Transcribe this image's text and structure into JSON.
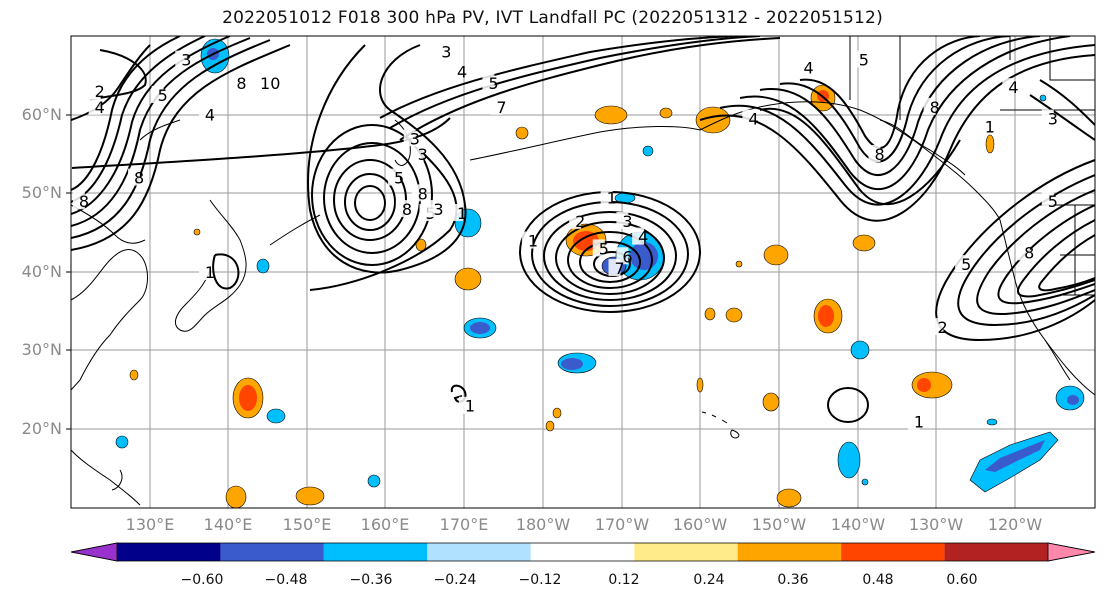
{
  "title": "2022051012 F018 300 hPa PV, IVT Landfall PC (2022051312 - 2022051512)",
  "lat_ticks": [
    "60°N",
    "50°N",
    "40°N",
    "30°N",
    "20°N"
  ],
  "lon_ticks": [
    "130°E",
    "140°E",
    "150°E",
    "160°E",
    "170°E",
    "180°W",
    "170°W",
    "160°W",
    "150°W",
    "140°W",
    "130°W",
    "120°W"
  ],
  "colorbar": {
    "labels": [
      "−0.60",
      "−0.48",
      "−0.36",
      "−0.24",
      "−0.12",
      "0.12",
      "0.24",
      "0.36",
      "0.48",
      "0.60"
    ],
    "colors": [
      "#9932cc",
      "#00008b",
      "#3a5bcc",
      "#00bfff",
      "#b0e2ff",
      "#ffffff",
      "#ffeb8a",
      "#ffa500",
      "#ff4500",
      "#b22222",
      "#ff88aa"
    ]
  },
  "contour_labels": [
    {
      "text": "2",
      "lon": 123,
      "lat": 63
    },
    {
      "text": "4",
      "lon": 123,
      "lat": 61
    },
    {
      "text": "3",
      "lon": 134,
      "lat": 67
    },
    {
      "text": "5",
      "lon": 131,
      "lat": 62.5
    },
    {
      "text": "4",
      "lon": 137,
      "lat": 60
    },
    {
      "text": "8",
      "lon": 141,
      "lat": 64
    },
    {
      "text": "10",
      "lon": 144,
      "lat": 64
    },
    {
      "text": "8",
      "lon": 128,
      "lat": 52
    },
    {
      "text": "8",
      "lon": 121,
      "lat": 49
    },
    {
      "text": "3",
      "lon": 167,
      "lat": 68
    },
    {
      "text": "4",
      "lon": 169,
      "lat": 65.5
    },
    {
      "text": "5",
      "lon": 173,
      "lat": 64
    },
    {
      "text": "7",
      "lon": 174,
      "lat": 61
    },
    {
      "text": "3",
      "lon": 163,
      "lat": 57
    },
    {
      "text": "3",
      "lon": 164,
      "lat": 55
    },
    {
      "text": "5",
      "lon": 161,
      "lat": 52
    },
    {
      "text": "8",
      "lon": 164,
      "lat": 50
    },
    {
      "text": "8",
      "lon": 162,
      "lat": 48
    },
    {
      "text": "5",
      "lon": 165,
      "lat": 47.5
    },
    {
      "text": "3",
      "lon": 166,
      "lat": 48
    },
    {
      "text": "1",
      "lon": 169,
      "lat": 47.5
    },
    {
      "text": "1",
      "lon": 178,
      "lat": 44
    },
    {
      "text": "1",
      "lon": 188,
      "lat": 49.5
    },
    {
      "text": "2",
      "lon": 184,
      "lat": 46.5
    },
    {
      "text": "3",
      "lon": 190,
      "lat": 46.5
    },
    {
      "text": "5",
      "lon": 187,
      "lat": 43
    },
    {
      "text": "6",
      "lon": 190,
      "lat": 42
    },
    {
      "text": "4",
      "lon": 192,
      "lat": 44.5
    },
    {
      "text": "7",
      "lon": 189,
      "lat": 40.5
    },
    {
      "text": "1",
      "lon": 137,
      "lat": 40
    },
    {
      "text": "4",
      "lon": 206,
      "lat": 59.5
    },
    {
      "text": "4",
      "lon": 213,
      "lat": 66
    },
    {
      "text": "5",
      "lon": 220,
      "lat": 67
    },
    {
      "text": "8",
      "lon": 222,
      "lat": 55
    },
    {
      "text": "8",
      "lon": 229,
      "lat": 61
    },
    {
      "text": "4",
      "lon": 239,
      "lat": 63.5
    },
    {
      "text": "3",
      "lon": 244,
      "lat": 59.5
    },
    {
      "text": "1",
      "lon": 236,
      "lat": 58.5
    },
    {
      "text": "5",
      "lon": 244,
      "lat": 49
    },
    {
      "text": "8",
      "lon": 241,
      "lat": 42.5
    },
    {
      "text": "5",
      "lon": 233,
      "lat": 41
    },
    {
      "text": "2",
      "lon": 230,
      "lat": 33
    },
    {
      "text": "1",
      "lon": 227,
      "lat": 21
    },
    {
      "text": "1",
      "lon": 170,
      "lat": 23
    }
  ]
}
